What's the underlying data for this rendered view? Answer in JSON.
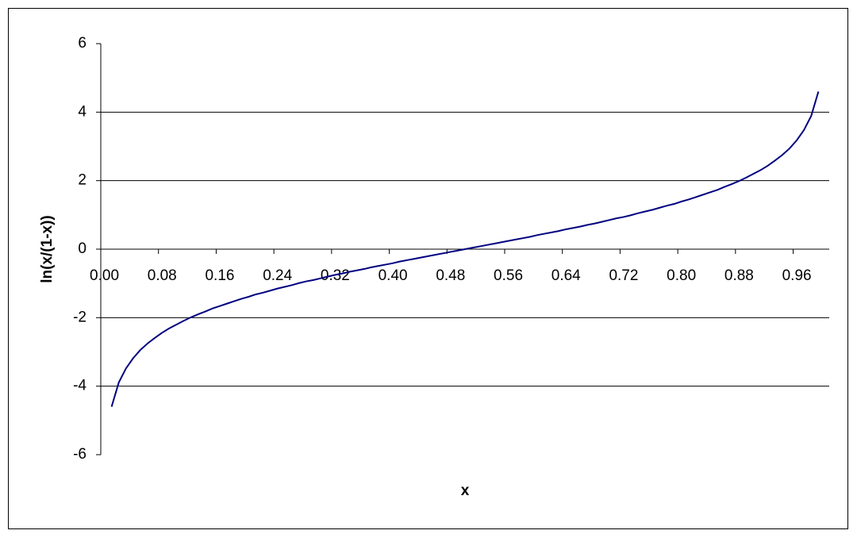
{
  "chart_data": {
    "type": "line",
    "x_label": "x",
    "y_label": "ln(x/(1-x))",
    "categories": [
      "0.00",
      null,
      null,
      null,
      null,
      null,
      null,
      null,
      "0.08",
      null,
      null,
      null,
      null,
      null,
      null,
      null,
      "0.16",
      null,
      null,
      null,
      null,
      null,
      null,
      null,
      "0.24",
      null,
      null,
      null,
      null,
      null,
      null,
      null,
      "0.32",
      null,
      null,
      null,
      null,
      null,
      null,
      null,
      "0.40",
      null,
      null,
      null,
      null,
      null,
      null,
      null,
      "0.48",
      null,
      null,
      null,
      null,
      null,
      null,
      null,
      "0.56",
      null,
      null,
      null,
      null,
      null,
      null,
      null,
      "0.64",
      null,
      null,
      null,
      null,
      null,
      null,
      null,
      "0.72",
      null,
      null,
      null,
      null,
      null,
      null,
      null,
      "0.80",
      null,
      null,
      null,
      null,
      null,
      null,
      null,
      "0.88",
      null,
      null,
      null,
      null,
      null,
      null,
      null,
      "0.96",
      null,
      null,
      null,
      null
    ],
    "values": [
      null,
      -4.6,
      -3.89,
      -3.48,
      -3.18,
      -2.94,
      -2.75,
      -2.59,
      -2.44,
      -2.31,
      -2.2,
      -2.09,
      -1.99,
      -1.9,
      -1.82,
      -1.73,
      -1.66,
      -1.59,
      -1.52,
      -1.45,
      -1.39,
      -1.32,
      -1.27,
      -1.21,
      -1.15,
      -1.1,
      -1.05,
      -0.99,
      -0.94,
      -0.9,
      -0.85,
      -0.8,
      -0.75,
      -0.71,
      -0.66,
      -0.62,
      -0.58,
      -0.53,
      -0.49,
      -0.45,
      -0.41,
      -0.36,
      -0.32,
      -0.28,
      -0.24,
      -0.2,
      -0.16,
      -0.12,
      -0.08,
      -0.04,
      0,
      0.04,
      0.08,
      0.12,
      0.16,
      0.2,
      0.24,
      0.28,
      0.32,
      0.36,
      0.41,
      0.45,
      0.49,
      0.53,
      0.58,
      0.62,
      0.66,
      0.71,
      0.75,
      0.8,
      0.85,
      0.9,
      0.94,
      0.99,
      1.05,
      1.1,
      1.15,
      1.21,
      1.27,
      1.32,
      1.39,
      1.45,
      1.52,
      1.59,
      1.66,
      1.73,
      1.82,
      1.9,
      1.99,
      2.09,
      2.2,
      2.31,
      2.44,
      2.59,
      2.75,
      2.94,
      3.18,
      3.48,
      3.89,
      4.6,
      null
    ],
    "color": "#000080",
    "ylim": [
      -6,
      6
    ],
    "yticks": [
      -6,
      -4,
      -2,
      0,
      2,
      4,
      6
    ],
    "grid": true
  }
}
